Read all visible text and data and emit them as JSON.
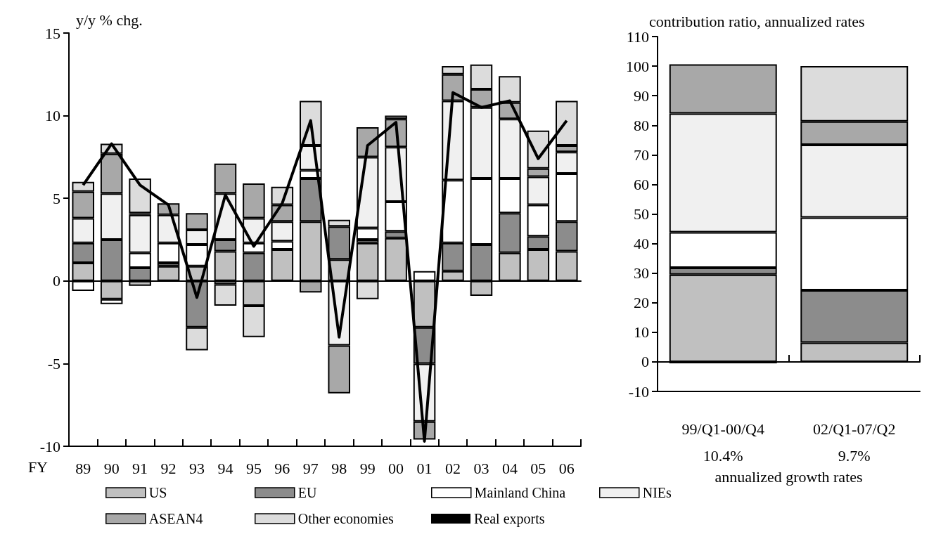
{
  "chart_data": [
    {
      "type": "bar",
      "stacked": true,
      "ylabel": "y/y % chg.",
      "xlabel": "FY",
      "categories": [
        "89",
        "90",
        "91",
        "92",
        "93",
        "94",
        "95",
        "96",
        "97",
        "98",
        "99",
        "00",
        "01",
        "02",
        "03",
        "04",
        "05",
        "06"
      ],
      "series": [
        {
          "name": "US",
          "color": "#c0c0c0",
          "values": [
            1.1,
            -1.1,
            -0.3,
            0.9,
            0.9,
            1.8,
            -1.5,
            1.9,
            3.6,
            1.3,
            2.3,
            2.6,
            -2.8,
            0.6,
            -0.9,
            1.7,
            1.9,
            1.8
          ]
        },
        {
          "name": "EU",
          "color": "#8c8c8c",
          "values": [
            1.2,
            2.5,
            0.8,
            0.2,
            -2.8,
            0.7,
            1.7,
            null,
            2.6,
            2.0,
            0.2,
            0.4,
            -2.2,
            1.7,
            2.2,
            2.4,
            0.8,
            1.8
          ]
        },
        {
          "name": "Mainland China",
          "color": "#ffffff",
          "values": [
            -0.6,
            -0.3,
            0.9,
            1.2,
            1.3,
            -0.2,
            0.6,
            0.5,
            0.5,
            null,
            0.7,
            1.8,
            0.6,
            3.8,
            4.0,
            2.1,
            1.9,
            2.9
          ]
        },
        {
          "name": "NIEs",
          "color": "#f0f0f0",
          "values": [
            1.5,
            2.8,
            2.3,
            1.7,
            0.9,
            2.8,
            1.5,
            1.2,
            1.5,
            -3.9,
            4.3,
            3.3,
            -3.5,
            4.8,
            4.3,
            3.6,
            1.7,
            1.3
          ]
        },
        {
          "name": "ASEAN4",
          "color": "#a8a8a8",
          "values": [
            1.6,
            2.4,
            0.1,
            0.7,
            1.0,
            1.8,
            2.1,
            1.0,
            -0.7,
            -2.9,
            1.8,
            1.7,
            -1.1,
            1.6,
            1.1,
            1.0,
            0.5,
            0.4
          ]
        },
        {
          "name": "Other economies",
          "color": "#dcdcdc",
          "values": [
            0.6,
            0.6,
            2.1,
            null,
            -1.4,
            -1.3,
            -1.9,
            1.1,
            2.7,
            0.4,
            -1.1,
            0.2,
            null,
            0.5,
            1.5,
            1.6,
            2.3,
            2.7
          ]
        },
        {
          "name": "Real exports",
          "type": "line",
          "color": "#000000",
          "values": [
            5.8,
            8.3,
            5.8,
            4.6,
            -1.0,
            5.2,
            2.1,
            4.7,
            9.7,
            -3.4,
            8.2,
            9.6,
            -9.7,
            11.4,
            10.5,
            10.9,
            7.4,
            9.7
          ]
        }
      ],
      "ylim": [
        -10,
        15
      ],
      "yticks": [
        -10,
        -5,
        0,
        5,
        10,
        15
      ],
      "marker": "none",
      "legend": "bottom"
    },
    {
      "type": "bar",
      "stacked": true,
      "ylabel": "contribution ratio, annualized rates",
      "categories": [
        "99/Q1-00/Q4",
        "02/Q1-07/Q2"
      ],
      "series": [
        {
          "color": "#c0c0c0",
          "values": [
            29.5,
            6.5
          ]
        },
        {
          "color": "#8c8c8c",
          "values": [
            2.3,
            17.7
          ]
        },
        {
          "color": "#ffffff",
          "values": [
            12.0,
            24.6
          ]
        },
        {
          "color": "#f0f0f0",
          "values": [
            40.2,
            24.6
          ]
        },
        {
          "color": "#a8a8a8",
          "values": [
            16.6,
            7.9
          ]
        },
        {
          "color": "#dcdcdc",
          "values": [
            -0.5,
            18.7
          ]
        }
      ],
      "ylim": [
        -10,
        110
      ],
      "yticks": [
        -10,
        0,
        10,
        20,
        30,
        40,
        50,
        60,
        70,
        80,
        90,
        100,
        110
      ],
      "annotations": [
        "10.4%",
        "9.7%",
        "annualized growth rates"
      ],
      "legend": false
    }
  ]
}
